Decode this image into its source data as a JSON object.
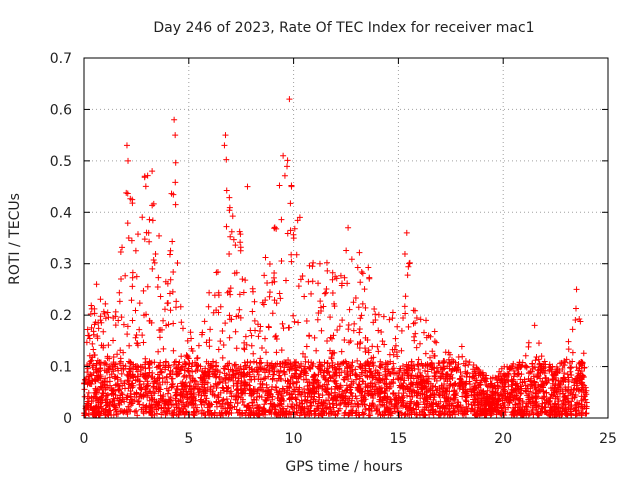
{
  "chart_data": {
    "type": "scatter",
    "title": "Day 246 of 2023, Rate Of TEC Index for receiver mac1",
    "xlabel": "GPS time / hours",
    "ylabel": "ROTI / TECUs",
    "xlim": [
      0,
      25
    ],
    "ylim": [
      0,
      0.7
    ],
    "xticks": [
      0,
      5,
      10,
      15,
      20,
      25
    ],
    "yticks": [
      0,
      0.1,
      0.2,
      0.3,
      0.4,
      0.5,
      0.6,
      0.7
    ],
    "xtick_labels": [
      "0",
      "5",
      "10",
      "15",
      "20",
      "25"
    ],
    "ytick_labels": [
      "0",
      "0.1",
      "0.2",
      "0.3",
      "0.4",
      "0.5",
      "0.6",
      "0.7"
    ],
    "grid": true,
    "marker": "+",
    "series_color": "#ff0000",
    "envelope": [
      {
        "x": 0.0,
        "y": 0.15
      },
      {
        "x": 0.5,
        "y": 0.25
      },
      {
        "x": 1.0,
        "y": 0.22
      },
      {
        "x": 1.5,
        "y": 0.2
      },
      {
        "x": 2.0,
        "y": 0.45
      },
      {
        "x": 2.5,
        "y": 0.4
      },
      {
        "x": 3.0,
        "y": 0.48
      },
      {
        "x": 3.5,
        "y": 0.4
      },
      {
        "x": 4.0,
        "y": 0.33
      },
      {
        "x": 4.3,
        "y": 0.57
      },
      {
        "x": 4.8,
        "y": 0.17
      },
      {
        "x": 5.5,
        "y": 0.15
      },
      {
        "x": 6.0,
        "y": 0.25
      },
      {
        "x": 6.5,
        "y": 0.35
      },
      {
        "x": 6.8,
        "y": 0.54
      },
      {
        "x": 7.2,
        "y": 0.4
      },
      {
        "x": 7.8,
        "y": 0.3
      },
      {
        "x": 8.3,
        "y": 0.2
      },
      {
        "x": 8.8,
        "y": 0.4
      },
      {
        "x": 9.3,
        "y": 0.45
      },
      {
        "x": 9.7,
        "y": 0.5
      },
      {
        "x": 10.2,
        "y": 0.38
      },
      {
        "x": 11.0,
        "y": 0.3
      },
      {
        "x": 11.5,
        "y": 0.35
      },
      {
        "x": 12.0,
        "y": 0.3
      },
      {
        "x": 12.5,
        "y": 0.37
      },
      {
        "x": 13.0,
        "y": 0.33
      },
      {
        "x": 13.5,
        "y": 0.32
      },
      {
        "x": 14.0,
        "y": 0.25
      },
      {
        "x": 14.5,
        "y": 0.22
      },
      {
        "x": 15.0,
        "y": 0.2
      },
      {
        "x": 15.4,
        "y": 0.36
      },
      {
        "x": 16.0,
        "y": 0.2
      },
      {
        "x": 16.5,
        "y": 0.18
      },
      {
        "x": 17.0,
        "y": 0.15
      },
      {
        "x": 17.5,
        "y": 0.12
      },
      {
        "x": 18.0,
        "y": 0.14
      },
      {
        "x": 18.5,
        "y": 0.1
      },
      {
        "x": 19.0,
        "y": 0.08
      },
      {
        "x": 19.5,
        "y": 0.07
      },
      {
        "x": 20.0,
        "y": 0.09
      },
      {
        "x": 20.5,
        "y": 0.1
      },
      {
        "x": 21.0,
        "y": 0.12
      },
      {
        "x": 21.5,
        "y": 0.18
      },
      {
        "x": 22.0,
        "y": 0.1
      },
      {
        "x": 22.5,
        "y": 0.09
      },
      {
        "x": 23.0,
        "y": 0.12
      },
      {
        "x": 23.5,
        "y": 0.25
      },
      {
        "x": 24.0,
        "y": 0.15
      }
    ],
    "highlights": [
      {
        "x": 9.8,
        "y": 0.62
      },
      {
        "x": 4.3,
        "y": 0.58
      },
      {
        "x": 4.35,
        "y": 0.55
      },
      {
        "x": 6.75,
        "y": 0.55
      },
      {
        "x": 6.7,
        "y": 0.53
      },
      {
        "x": 2.05,
        "y": 0.53
      },
      {
        "x": 2.1,
        "y": 0.5
      },
      {
        "x": 9.5,
        "y": 0.51
      },
      {
        "x": 3.25,
        "y": 0.48
      },
      {
        "x": 2.9,
        "y": 0.47
      },
      {
        "x": 9.9,
        "y": 0.45
      },
      {
        "x": 15.4,
        "y": 0.36
      },
      {
        "x": 23.5,
        "y": 0.25
      },
      {
        "x": 21.5,
        "y": 0.18
      },
      {
        "x": 0.6,
        "y": 0.26
      },
      {
        "x": 12.6,
        "y": 0.37
      },
      {
        "x": 7.8,
        "y": 0.45
      },
      {
        "x": 10.3,
        "y": 0.39
      }
    ]
  }
}
